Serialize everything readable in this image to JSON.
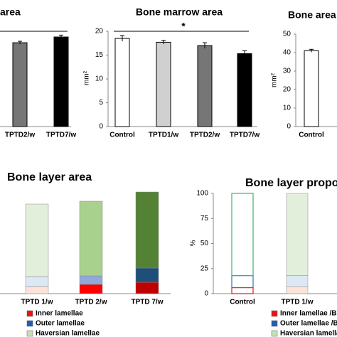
{
  "chart_data": [
    {
      "type": "bar",
      "title": "area",
      "categories": [
        "TPTD2/w",
        "TPTD7/w"
      ],
      "values": [
        17.6,
        18.8
      ],
      "errors": [
        0.3,
        0.4
      ],
      "colors": [
        "#767676",
        "#000000"
      ],
      "ylim": [
        0,
        20
      ]
    },
    {
      "type": "bar",
      "title": "Bone marrow area",
      "y_label": "mm²",
      "annotation": "*",
      "categories": [
        "Control",
        "TPTD1/w",
        "TPTD2/w",
        "TPTD7/w"
      ],
      "values": [
        18.5,
        17.7,
        17.0,
        15.3
      ],
      "errors": [
        0.6,
        0.4,
        0.6,
        0.6
      ],
      "colors": [
        "#ffffff",
        "#d0d0d0",
        "#767676",
        "#000000"
      ],
      "ylim": [
        0,
        20
      ],
      "yticks": [
        0,
        5,
        10,
        15,
        20
      ]
    },
    {
      "type": "bar",
      "title": "Bone area",
      "y_label": "mm²",
      "categories": [
        "Control"
      ],
      "values": [
        41
      ],
      "errors": [
        0.8
      ],
      "colors": [
        "#ffffff"
      ],
      "ylim": [
        0,
        50
      ],
      "yticks": [
        0,
        10,
        20,
        30,
        40,
        50
      ]
    },
    {
      "type": "stacked_bar",
      "title": "Bone layer area",
      "categories": [
        "TPTD 1/w",
        "TPTD 2/w",
        "TPTD 7/w"
      ],
      "ylim": [
        0,
        150
      ],
      "fill_styles": [
        "solid",
        "solid",
        "solid"
      ],
      "series": [
        {
          "name": "Inner lamellae",
          "color": "#ee1111",
          "colors": [
            "#fde3d8",
            "#ff0000",
            "#c00000"
          ],
          "values": [
            10,
            13,
            16
          ]
        },
        {
          "name": "Outer lamellae",
          "color": "#1f5fb4",
          "colors": [
            "#dde8f5",
            "#8ea9db",
            "#1f4e79"
          ],
          "values": [
            14,
            12,
            20
          ]
        },
        {
          "name": "Haversian lamellae",
          "color": "#c5e0b3",
          "colors": [
            "#e2efda",
            "#a9d18e",
            "#548235"
          ],
          "values": [
            102,
            105,
            107
          ]
        }
      ]
    },
    {
      "type": "stacked_bar",
      "title": "Bone layer propo",
      "y_label": "%",
      "categories": [
        "Control",
        "TPTD 1/w"
      ],
      "ylim": [
        0,
        100
      ],
      "yticks": [
        0,
        25,
        50,
        75,
        100
      ],
      "fill_styles": [
        "outline",
        "solid"
      ],
      "series": [
        {
          "name": "Inner lamellae /Bo",
          "color": "#ee1111",
          "colors": [
            "#ee1111",
            "#fde3d8"
          ],
          "values": [
            6,
            7
          ]
        },
        {
          "name": "Outer lamellae /Bo",
          "color": "#1f5fb4",
          "colors": [
            "#2e75b6",
            "#dde8f5"
          ],
          "values": [
            12,
            11
          ]
        },
        {
          "name": "Haversian lamellae",
          "color": "#c5e0b3",
          "colors": [
            "#3cb371",
            "#e2efda"
          ],
          "values": [
            82,
            82
          ]
        }
      ]
    }
  ]
}
